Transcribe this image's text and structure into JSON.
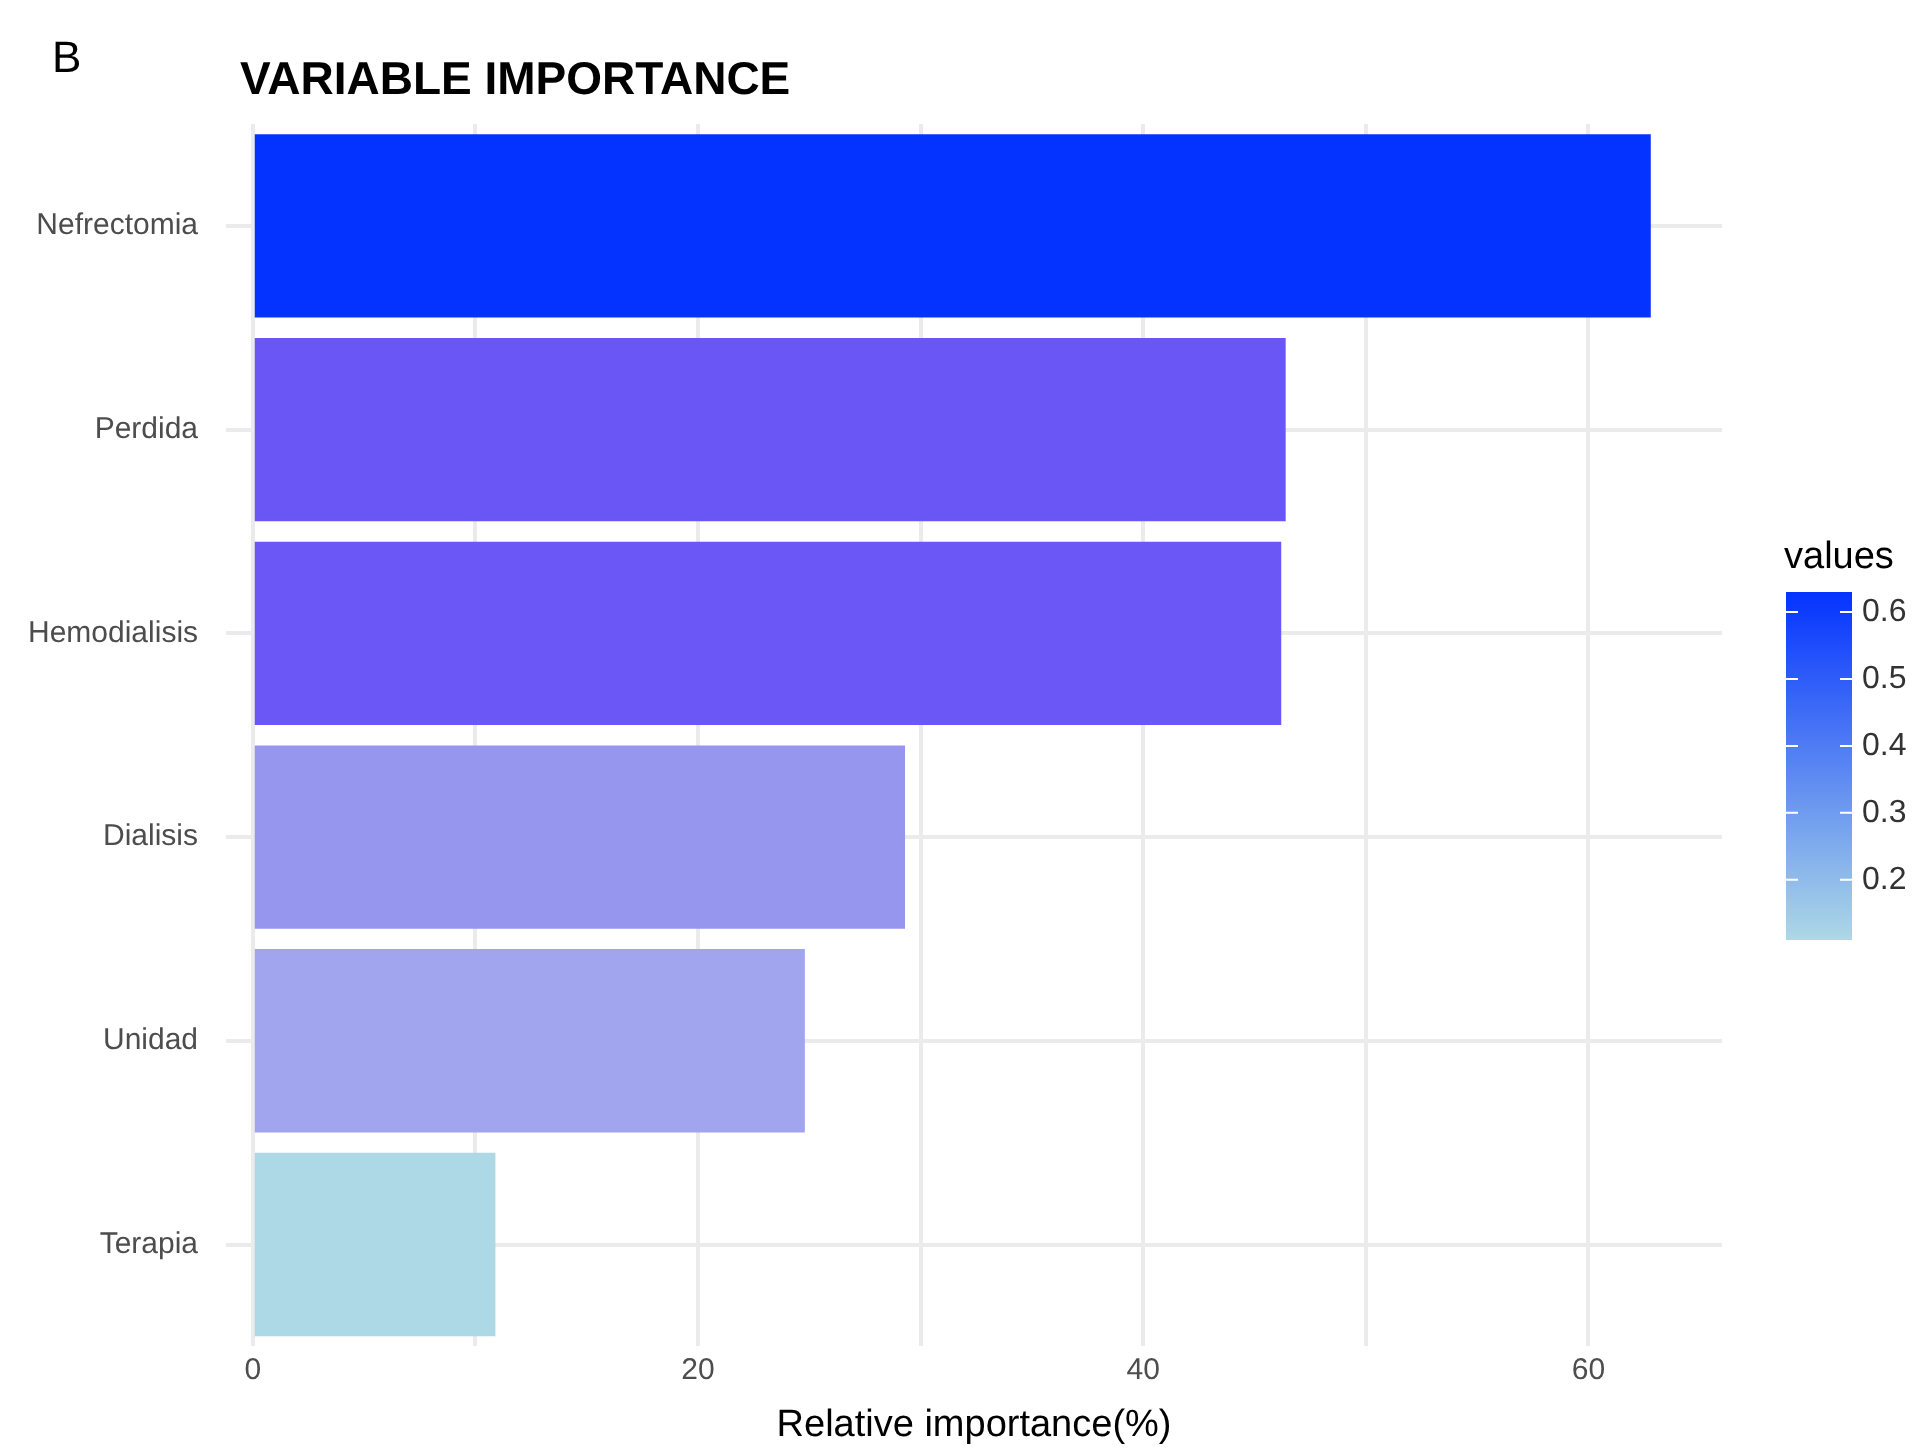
{
  "chart_data": {
    "type": "bar",
    "orientation": "horizontal",
    "title": "VARIABLE IMPORTANCE",
    "xlabel": "Relative importance(%)",
    "annotations": [
      "B"
    ],
    "categories": [
      "Nefrectomia",
      "Perdida",
      "Hemodialisis",
      "Dialisis",
      "Unidad",
      "Terapia"
    ],
    "values": [
      62.8,
      46.4,
      46.2,
      29.3,
      24.8,
      10.9
    ],
    "colors": [
      "#0433ff",
      "#6a55f5",
      "#6b57f5",
      "#9696ee",
      "#a0a5ee",
      "#add8e6"
    ],
    "xlim": [
      -1.2,
      66
    ],
    "xticks": [
      0,
      {
        "value": 10,
        "label": null
      },
      20,
      {
        "value": 30,
        "label": null
      },
      40,
      {
        "value": 50,
        "label": null
      },
      60
    ],
    "clabel": "values",
    "clim": [
      0.11,
      0.63
    ],
    "cticks": [
      0.2,
      0.3,
      0.4,
      0.5,
      0.6
    ],
    "grid": true,
    "legend": false
  }
}
